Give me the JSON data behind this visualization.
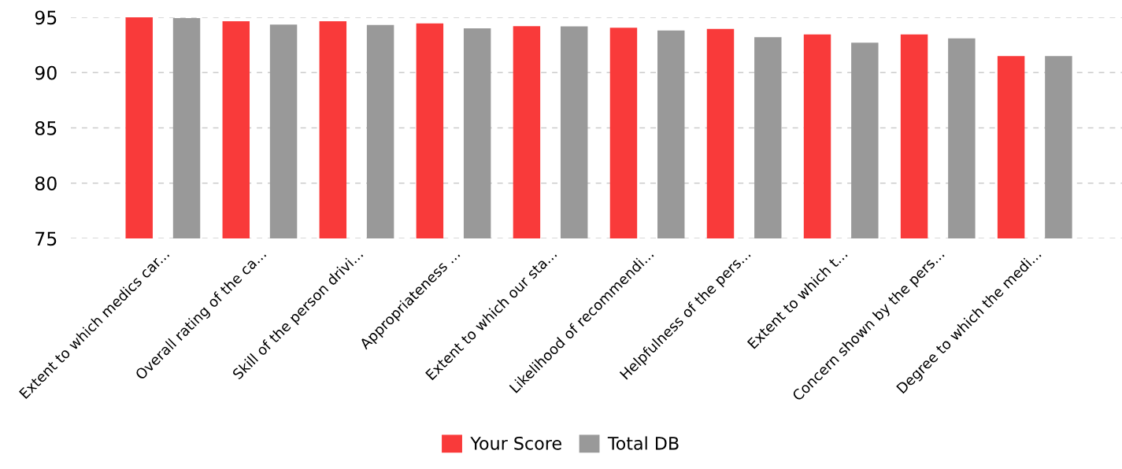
{
  "chart_data": {
    "type": "bar",
    "categories": [
      "Extent to which medics car...",
      "Overall rating of the ca...",
      "Skill of the person drivi...",
      "Appropriateness ...",
      "Extent to which our sta...",
      "Likelihood of recommendi...",
      "Helpfulness of the pers...",
      "Extent to which t...",
      "Concern shown by the pers...",
      "Degree to which the medi..."
    ],
    "series": [
      {
        "name": "Your Score",
        "color": "#f93a3a",
        "values": [
          95.0,
          94.64,
          94.64,
          94.44,
          94.2,
          94.05,
          93.95,
          93.45,
          93.45,
          91.5
        ]
      },
      {
        "name": "Total DB",
        "color": "#999999",
        "values": [
          94.93,
          94.35,
          94.3,
          94.0,
          94.18,
          93.8,
          93.2,
          92.7,
          93.1,
          91.5
        ]
      }
    ],
    "ylim": [
      75,
      95
    ],
    "yticks": [
      75,
      80,
      85,
      90,
      95
    ],
    "grid": "y",
    "legend": "bottom"
  }
}
